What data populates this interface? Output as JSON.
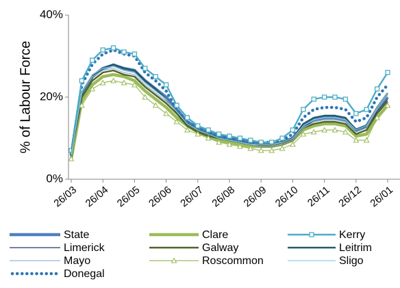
{
  "chart_data": {
    "type": "line",
    "y_label": "% of Labour Force",
    "categories": [
      "26/03",
      null,
      null,
      "26/04",
      null,
      null,
      "26/05",
      null,
      null,
      "26/06",
      null,
      null,
      "26/07",
      null,
      null,
      "26/08",
      null,
      null,
      "26/09",
      null,
      null,
      "26/10",
      null,
      null,
      "26/11",
      null,
      null,
      "26/12",
      null,
      null,
      "26/01"
    ],
    "ylim": [
      0,
      40
    ],
    "yticks": [
      {
        "value": 0,
        "label": "0%"
      },
      {
        "value": 20,
        "label": "20%"
      },
      {
        "value": 40,
        "label": "40%"
      }
    ],
    "grid": false,
    "legend": "bottom",
    "series": [
      {
        "name": "State",
        "color": "#4f81bd",
        "weight": "thick",
        "values": [
          6,
          20,
          25,
          27,
          27.8,
          27,
          26.5,
          24,
          22,
          20,
          17,
          14,
          12.5,
          11.5,
          10.5,
          10,
          9.5,
          9,
          8.5,
          8.5,
          9,
          10,
          13,
          14.5,
          15,
          15,
          14.5,
          12,
          13,
          17,
          20
        ]
      },
      {
        "name": "Clare",
        "color": "#9bbb59",
        "weight": "thick",
        "values": [
          5,
          19,
          23,
          25,
          25.5,
          25,
          24,
          21.5,
          19.5,
          17.5,
          15,
          13,
          11.5,
          10.5,
          9.5,
          9,
          8.5,
          8,
          8,
          8,
          8.5,
          9.5,
          12,
          13,
          13.5,
          13.5,
          13,
          10.5,
          11,
          15,
          18
        ]
      },
      {
        "name": "Kerry",
        "color": "#4bacc6",
        "weight": "medium",
        "marker": "square",
        "values": [
          7,
          24,
          29,
          31.5,
          32,
          31,
          30.5,
          27,
          25,
          23,
          18,
          15,
          13,
          12,
          11,
          10.5,
          10,
          9.5,
          9,
          9,
          10,
          12,
          17,
          19.5,
          20,
          20,
          19.5,
          16,
          17,
          22,
          26
        ]
      },
      {
        "name": "Limerick",
        "color": "#1f3864",
        "weight": "thin",
        "values": [
          6,
          21,
          25.5,
          27,
          27.5,
          26.5,
          26,
          23.5,
          21.5,
          19.5,
          16.5,
          13.5,
          12,
          11,
          10,
          9.5,
          9,
          8.5,
          8.5,
          8.5,
          9,
          10,
          13,
          14,
          14.5,
          14.5,
          14,
          11.5,
          12.5,
          16.5,
          19.5
        ]
      },
      {
        "name": "Galway",
        "color": "#4f6228",
        "weight": "medium",
        "values": [
          5,
          20,
          24,
          26,
          26.5,
          25.5,
          25,
          22.5,
          20.5,
          18.5,
          16,
          13,
          11.5,
          10.5,
          10,
          9.5,
          9,
          8.5,
          8,
          8,
          8.5,
          9.5,
          12.5,
          13.5,
          14,
          14,
          13.5,
          11,
          12,
          16,
          19
        ]
      },
      {
        "name": "Leitrim",
        "color": "#215968",
        "weight": "medium",
        "values": [
          6,
          21,
          25,
          27,
          28,
          27,
          26.5,
          24,
          22,
          19.5,
          16.5,
          13.5,
          12,
          11,
          10,
          9.5,
          9,
          8.5,
          8.5,
          8.5,
          9,
          10,
          13.5,
          15,
          15.5,
          15.5,
          15,
          12,
          13,
          17.5,
          21
        ]
      },
      {
        "name": "Mayo",
        "color": "#95b3d7",
        "weight": "thin",
        "values": [
          6,
          21,
          25,
          26.5,
          27,
          26,
          25.5,
          23,
          21,
          19,
          16.5,
          13.5,
          12,
          11,
          10,
          9.5,
          9,
          8.5,
          8,
          8,
          8.5,
          9.5,
          12.5,
          14,
          14.5,
          14.5,
          14,
          11.5,
          12.5,
          17,
          20.5
        ]
      },
      {
        "name": "Roscommon",
        "color": "#9bbb59",
        "weight": "thin",
        "marker": "triangle",
        "values": [
          5,
          18,
          22,
          23.5,
          24,
          23.5,
          23,
          20,
          18,
          16,
          14,
          12,
          11,
          10,
          9,
          8.5,
          8,
          7.5,
          7,
          7,
          7.5,
          8.5,
          11,
          11.5,
          12,
          12,
          11.5,
          9.5,
          9.5,
          15,
          18
        ]
      },
      {
        "name": "Sligo",
        "color": "#93cddd",
        "weight": "thin",
        "values": [
          6,
          21.5,
          25.5,
          27,
          27.5,
          26.5,
          26,
          23.5,
          21.5,
          19.5,
          16.5,
          13.5,
          12,
          11,
          10,
          9.5,
          9,
          8.5,
          8.5,
          8.5,
          9,
          10,
          13,
          14.5,
          15,
          15,
          14.5,
          12,
          13,
          17.5,
          21
        ]
      },
      {
        "name": "Donegal",
        "color": "#2e75b6",
        "weight": "thick",
        "dash": "dotted",
        "values": [
          6,
          23,
          28,
          30.5,
          31.5,
          30.5,
          30,
          26,
          24,
          21.5,
          17,
          14,
          12.5,
          11.5,
          10.5,
          10,
          9.5,
          9,
          9,
          9,
          9.5,
          11,
          15,
          17,
          17.5,
          17.5,
          17,
          14,
          15,
          20,
          23
        ]
      }
    ]
  }
}
